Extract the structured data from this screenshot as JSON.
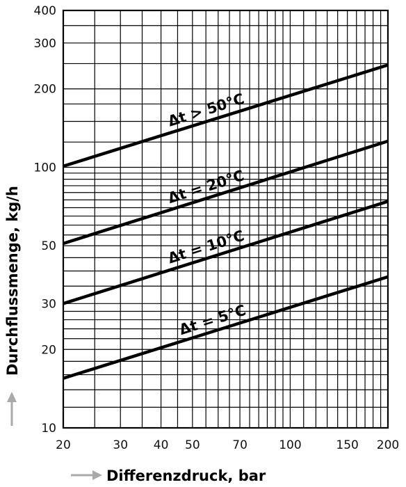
{
  "chart_data": {
    "type": "line",
    "xscale": "log",
    "yscale": "log",
    "xlim": [
      20,
      200
    ],
    "ylim": [
      10,
      400
    ],
    "grid": true,
    "xlabel": "Differenzdruck, bar",
    "ylabel": "Durchflussmenge, kg/h",
    "xticks": [
      20,
      30,
      40,
      50,
      70,
      100,
      150,
      200
    ],
    "yticks": [
      10,
      20,
      30,
      50,
      100,
      200,
      300,
      400
    ],
    "series": [
      {
        "name": "Δt > 50°C",
        "x": [
          20,
          200
        ],
        "y": [
          101,
          247
        ]
      },
      {
        "name": "Δt = 20°C",
        "x": [
          20,
          200
        ],
        "y": [
          51,
          126
        ]
      },
      {
        "name": "Δt = 10°C",
        "x": [
          20,
          200
        ],
        "y": [
          30,
          74
        ]
      },
      {
        "name": "Δt = 5°C",
        "x": [
          20,
          200
        ],
        "y": [
          15.5,
          38
        ]
      }
    ]
  }
}
